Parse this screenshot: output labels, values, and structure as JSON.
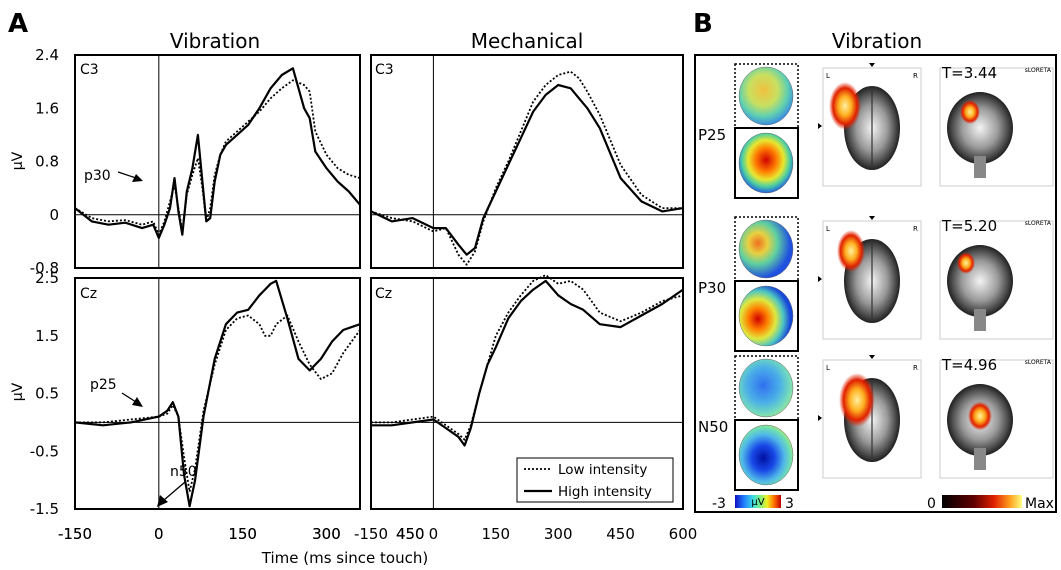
{
  "panel_a_label": "A",
  "panel_b_label": "B",
  "x_axis_label": "Time (ms since touch)",
  "legend": {
    "low": "Low intensity",
    "high": "High intensity"
  },
  "colors": {
    "line": "#000000",
    "panel_border": "#000000"
  },
  "chart_data": [
    {
      "type": "line",
      "title": "Vibration",
      "channel": "C3",
      "ylabel": "μV",
      "xlim": [
        -150,
        360
      ],
      "ylim": [
        -0.8,
        2.4
      ],
      "x_ticks": [
        "-150",
        "0",
        "150",
        "300",
        "450"
      ],
      "y_ticks": [
        {
          "v": 2.4,
          "t": "2.4"
        },
        {
          "v": 1.6,
          "t": "1.6"
        },
        {
          "v": 0.8,
          "t": "0.8"
        },
        {
          "v": 0,
          "t": "0"
        },
        {
          "v": -0.8,
          "t": "-0.8"
        }
      ],
      "annotations": [
        {
          "text": "p30",
          "x": 30,
          "y": 0.55
        }
      ],
      "series": [
        {
          "name": "Low intensity",
          "style": "dotted",
          "x": [
            -150,
            -120,
            -90,
            -60,
            -30,
            -10,
            0,
            10,
            20,
            28,
            35,
            42,
            50,
            60,
            70,
            78,
            85,
            92,
            100,
            110,
            120,
            140,
            160,
            180,
            200,
            220,
            240,
            260,
            270,
            280,
            300,
            320,
            340,
            360
          ],
          "y": [
            0.1,
            -0.05,
            -0.1,
            -0.08,
            -0.15,
            -0.1,
            -0.3,
            -0.1,
            0.2,
            0.45,
            0.1,
            -0.25,
            0.3,
            0.6,
            0.85,
            0.4,
            -0.1,
            0.1,
            0.6,
            0.9,
            1.1,
            1.25,
            1.4,
            1.55,
            1.75,
            1.9,
            2.02,
            1.95,
            1.85,
            1.25,
            0.9,
            0.7,
            0.6,
            0.55
          ]
        },
        {
          "name": "High intensity",
          "style": "solid",
          "x": [
            -150,
            -120,
            -90,
            -60,
            -30,
            -10,
            0,
            10,
            20,
            28,
            35,
            42,
            50,
            60,
            70,
            78,
            85,
            92,
            100,
            110,
            120,
            140,
            160,
            180,
            200,
            220,
            240,
            260,
            270,
            280,
            300,
            320,
            340,
            360
          ],
          "y": [
            0.1,
            -0.1,
            -0.15,
            -0.12,
            -0.2,
            -0.15,
            -0.35,
            -0.15,
            0.1,
            0.55,
            0.05,
            -0.3,
            0.35,
            0.7,
            1.2,
            0.5,
            -0.1,
            -0.05,
            0.5,
            0.9,
            1.05,
            1.2,
            1.35,
            1.6,
            1.9,
            2.1,
            2.2,
            1.6,
            1.45,
            0.95,
            0.7,
            0.5,
            0.35,
            0.15
          ]
        }
      ]
    },
    {
      "type": "line",
      "title": "Mechanical",
      "channel": "C3",
      "ylabel": "",
      "xlim": [
        -150,
        600
      ],
      "ylim": [
        -0.8,
        2.4
      ],
      "series": [
        {
          "name": "Low intensity",
          "style": "dotted",
          "x": [
            -150,
            -100,
            -50,
            0,
            30,
            60,
            80,
            100,
            120,
            150,
            180,
            210,
            240,
            270,
            300,
            330,
            350,
            370,
            400,
            450,
            500,
            550,
            600
          ],
          "y": [
            0.05,
            -0.05,
            -0.1,
            -0.25,
            -0.2,
            -0.6,
            -0.75,
            -0.55,
            -0.1,
            0.4,
            0.8,
            1.25,
            1.7,
            1.95,
            2.1,
            2.15,
            2.05,
            1.85,
            1.5,
            0.75,
            0.3,
            0.1,
            0.1
          ]
        },
        {
          "name": "High intensity",
          "style": "solid",
          "x": [
            -150,
            -100,
            -50,
            0,
            30,
            60,
            80,
            100,
            120,
            150,
            180,
            210,
            240,
            270,
            300,
            330,
            350,
            370,
            400,
            450,
            500,
            550,
            600
          ],
          "y": [
            0.05,
            -0.1,
            -0.05,
            -0.2,
            -0.2,
            -0.45,
            -0.6,
            -0.5,
            -0.05,
            0.35,
            0.75,
            1.15,
            1.55,
            1.8,
            1.95,
            1.9,
            1.75,
            1.6,
            1.3,
            0.55,
            0.2,
            0.05,
            0.1
          ]
        }
      ]
    },
    {
      "type": "line",
      "title": "",
      "channel": "Cz",
      "ylabel": "μV",
      "xlim": [
        -150,
        360
      ],
      "ylim": [
        -1.5,
        2.5
      ],
      "x_ticks": [
        "-150",
        "0",
        "150",
        "300",
        "450"
      ],
      "y_ticks": [
        {
          "v": 2.5,
          "t": "2.5"
        },
        {
          "v": 1.5,
          "t": "1.5"
        },
        {
          "v": 0.5,
          "t": "0.5"
        },
        {
          "v": -0.5,
          "t": "-0.5"
        },
        {
          "v": -1.5,
          "t": "-1.5"
        }
      ],
      "annotations": [
        {
          "text": "p25",
          "x": 25,
          "y": 0.35
        },
        {
          "text": "n50",
          "x": 50,
          "y": -1.45
        }
      ],
      "series": [
        {
          "name": "Low intensity",
          "style": "dotted",
          "x": [
            -150,
            -100,
            -50,
            0,
            15,
            25,
            35,
            45,
            55,
            65,
            80,
            100,
            120,
            140,
            160,
            180,
            190,
            200,
            210,
            230,
            250,
            270,
            290,
            310,
            330,
            345,
            360
          ],
          "y": [
            0.0,
            0.0,
            0.05,
            0.1,
            0.15,
            0.3,
            0.1,
            -0.6,
            -1.2,
            -0.8,
            0.2,
            1.0,
            1.6,
            1.8,
            1.85,
            1.7,
            1.5,
            1.5,
            1.7,
            1.85,
            1.4,
            1.0,
            0.75,
            0.85,
            1.2,
            1.4,
            1.6
          ]
        },
        {
          "name": "High intensity",
          "style": "solid",
          "x": [
            -150,
            -100,
            -50,
            0,
            15,
            25,
            35,
            45,
            55,
            65,
            80,
            100,
            120,
            140,
            160,
            180,
            190,
            200,
            210,
            230,
            250,
            270,
            290,
            310,
            330,
            345,
            360
          ],
          "y": [
            0.0,
            -0.05,
            0.0,
            0.1,
            0.2,
            0.35,
            0.1,
            -0.9,
            -1.45,
            -1.0,
            0.1,
            1.1,
            1.7,
            1.9,
            1.95,
            2.2,
            2.3,
            2.4,
            2.45,
            1.8,
            1.1,
            0.9,
            1.1,
            1.4,
            1.6,
            1.65,
            1.7
          ]
        }
      ]
    },
    {
      "type": "line",
      "title": "",
      "channel": "Cz",
      "ylabel": "",
      "xlim": [
        -150,
        600
      ],
      "ylim": [
        -1.5,
        2.5
      ],
      "x_ticks": [
        "-150",
        "0",
        "150",
        "300",
        "450",
        "600"
      ],
      "series": [
        {
          "name": "Low intensity",
          "style": "dotted",
          "x": [
            -150,
            -100,
            -50,
            0,
            30,
            60,
            75,
            90,
            110,
            130,
            150,
            180,
            210,
            240,
            270,
            300,
            330,
            360,
            400,
            450,
            500,
            550,
            600
          ],
          "y": [
            0.0,
            0.0,
            0.05,
            0.1,
            -0.05,
            -0.2,
            -0.3,
            -0.05,
            0.5,
            1.0,
            1.5,
            1.9,
            2.2,
            2.45,
            2.55,
            2.4,
            2.45,
            2.3,
            1.9,
            1.75,
            1.9,
            2.1,
            2.2
          ]
        },
        {
          "name": "High intensity",
          "style": "solid",
          "x": [
            -150,
            -100,
            -50,
            0,
            30,
            60,
            75,
            90,
            110,
            130,
            150,
            180,
            210,
            240,
            270,
            300,
            330,
            360,
            400,
            450,
            500,
            550,
            600
          ],
          "y": [
            -0.05,
            -0.05,
            0.0,
            0.05,
            -0.1,
            -0.25,
            -0.4,
            -0.1,
            0.5,
            1.0,
            1.3,
            1.8,
            2.1,
            2.3,
            2.45,
            2.2,
            2.05,
            1.95,
            1.7,
            1.65,
            1.85,
            2.05,
            2.3
          ]
        }
      ]
    }
  ],
  "panel_b": {
    "title": "Vibration",
    "rows": [
      {
        "label": "P25",
        "t_value": "T=3.44",
        "sloreta": "sLORETA"
      },
      {
        "label": "P30",
        "t_value": "T=5.20",
        "sloreta": "sLORETA"
      },
      {
        "label": "N50",
        "t_value": "T=4.96",
        "sloreta": "sLORETA"
      }
    ],
    "scale_left": {
      "min": "-3",
      "unit": "μV",
      "max": "3"
    },
    "scale_right": {
      "min": "0",
      "max": "Max"
    },
    "orientation": {
      "left": "L",
      "right": "R"
    }
  }
}
